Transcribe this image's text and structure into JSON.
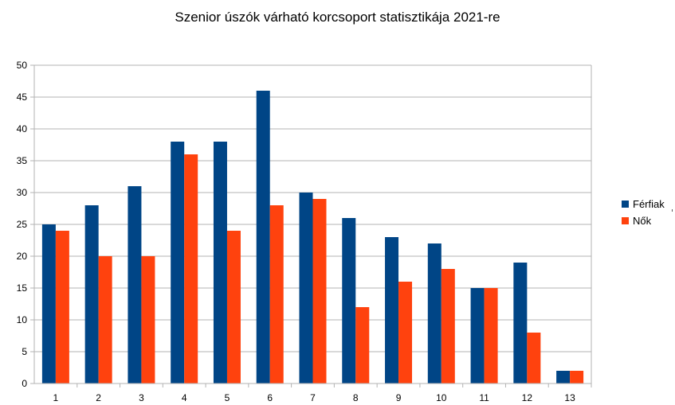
{
  "chart_data": {
    "type": "bar",
    "title": "Szenior úszók várható korcsoport statisztikája 2021-re",
    "xlabel": "",
    "ylabel": "",
    "categories": [
      "1",
      "2",
      "3",
      "4",
      "5",
      "6",
      "7",
      "8",
      "9",
      "10",
      "11",
      "12",
      "13"
    ],
    "series": [
      {
        "name": "Férfiak",
        "color": "#004586",
        "values": [
          25,
          28,
          31,
          38,
          38,
          46,
          30,
          26,
          23,
          22,
          15,
          19,
          2
        ]
      },
      {
        "name": "Nők",
        "color": "#ff420e",
        "values": [
          24,
          20,
          20,
          36,
          24,
          28,
          29,
          12,
          16,
          18,
          15,
          8,
          2
        ]
      }
    ],
    "ylim": [
      0,
      50
    ],
    "yticks": [
      0,
      5,
      10,
      15,
      20,
      25,
      30,
      35,
      40,
      45,
      50
    ],
    "grid": true,
    "legend_position": "right"
  }
}
